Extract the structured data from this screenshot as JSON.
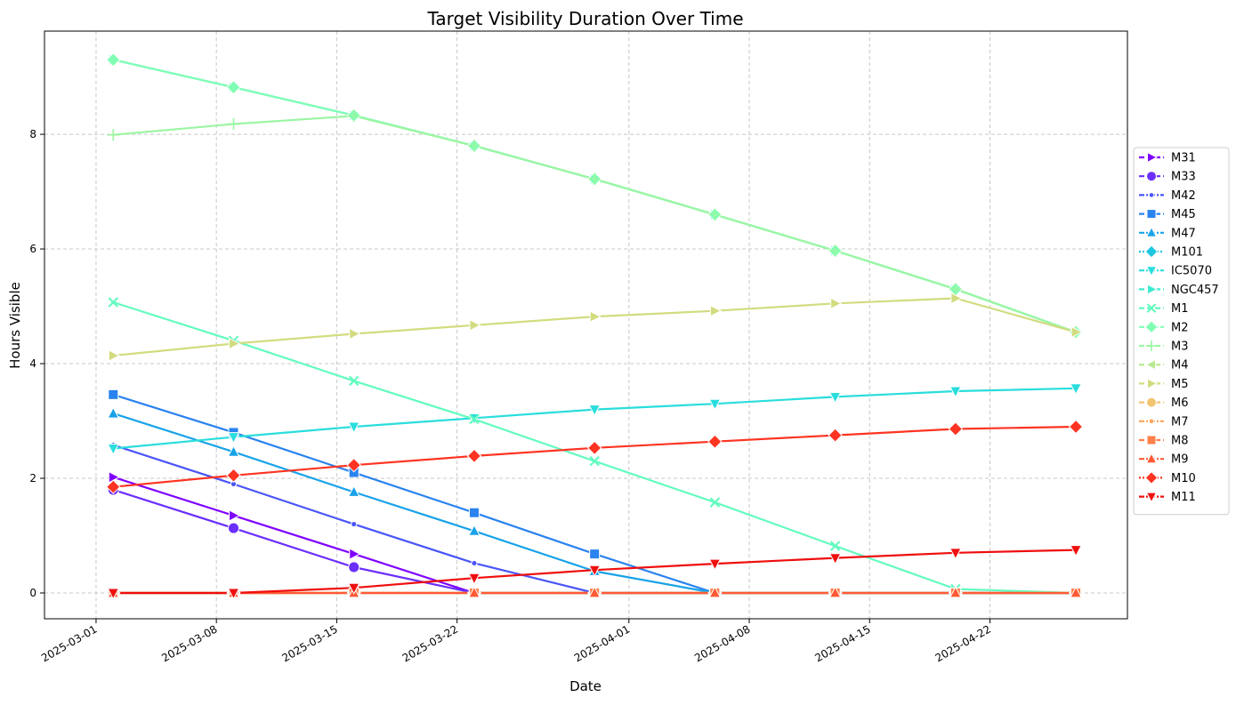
{
  "chart_data": {
    "type": "line",
    "title": "Target Visibility Duration Over Time",
    "xlabel": "Date",
    "ylabel": "Hours Visible",
    "x_ticks": [
      "2025-03-01",
      "2025-03-08",
      "2025-03-15",
      "2025-03-22",
      "2025-04-01",
      "2025-04-08",
      "2025-04-15",
      "2025-04-22"
    ],
    "y_ticks": [
      "0",
      "2",
      "4",
      "6",
      "8"
    ],
    "xlim": [
      "2025-02-26",
      "2025-04-30"
    ],
    "ylim": [
      -0.45,
      9.8
    ],
    "grid": true,
    "legend_position": "right",
    "x": [
      "2025-03-02",
      "2025-03-09",
      "2025-03-16",
      "2025-03-23",
      "2025-03-30",
      "2025-04-06",
      "2025-04-13",
      "2025-04-20",
      "2025-04-27"
    ],
    "series": [
      {
        "name": "M31",
        "color": "#7f00ff",
        "marker": "triangle-right",
        "dash": "dashed",
        "values": [
          2.02,
          1.35,
          0.68,
          0.0,
          0.0,
          0.0,
          0.0,
          0.0,
          0.0
        ]
      },
      {
        "name": "M33",
        "color": "#6a2ffc",
        "marker": "circle",
        "dash": "dashed",
        "values": [
          1.8,
          1.13,
          0.45,
          0.0,
          0.0,
          0.0,
          0.0,
          0.0,
          0.0
        ]
      },
      {
        "name": "M42",
        "color": "#4a55f7",
        "marker": "dot",
        "dash": "dashdot",
        "values": [
          2.58,
          1.9,
          1.2,
          0.52,
          0.0,
          0.0,
          0.0,
          0.0,
          0.0
        ]
      },
      {
        "name": "M45",
        "color": "#2a83ee",
        "marker": "square",
        "dash": "dashed",
        "values": [
          3.46,
          2.8,
          2.1,
          1.4,
          0.68,
          0.0,
          0.0,
          0.0,
          0.0
        ]
      },
      {
        "name": "M47",
        "color": "#18a2e8",
        "marker": "triangle-up",
        "dash": "dashdot",
        "values": [
          3.13,
          2.46,
          1.76,
          1.08,
          0.38,
          0.0,
          0.0,
          0.0,
          0.0
        ]
      },
      {
        "name": "M101",
        "color": "#1ec7e0",
        "marker": "diamond",
        "dash": "dotted",
        "values": [
          0.0,
          0.0,
          0.0,
          0.0,
          0.0,
          0.0,
          0.0,
          0.0,
          0.0
        ]
      },
      {
        "name": "IC5070",
        "color": "#2adddd",
        "marker": "triangle-down",
        "dash": "dashdot",
        "values": [
          2.52,
          2.72,
          2.9,
          3.05,
          3.2,
          3.3,
          3.42,
          3.52,
          3.57
        ]
      },
      {
        "name": "NGC457",
        "color": "#3eeace",
        "marker": "triangle-right",
        "dash": "dashed",
        "values": [
          9.3,
          8.82,
          8.33,
          7.8,
          7.22,
          6.6,
          5.97,
          5.3,
          4.55
        ]
      },
      {
        "name": "M1",
        "color": "#63fbbf",
        "marker": "x",
        "dash": "dashed",
        "values": [
          5.07,
          4.4,
          3.7,
          3.03,
          2.3,
          1.58,
          0.82,
          0.07,
          0.0
        ]
      },
      {
        "name": "M2",
        "color": "#80ffb4",
        "marker": "diamond",
        "dash": "dashdot",
        "values": [
          9.3,
          8.82,
          8.33,
          7.8,
          7.22,
          6.6,
          5.97,
          5.3,
          4.55
        ]
      },
      {
        "name": "M3",
        "color": "#9bf6a2",
        "marker": "plus",
        "dash": "dashed",
        "values": [
          7.99,
          8.18,
          8.32,
          7.8,
          7.22,
          6.6,
          5.97,
          5.3,
          4.55
        ]
      },
      {
        "name": "M4",
        "color": "#b6e98f",
        "marker": "triangle-left",
        "dash": "dashed",
        "values": [
          0.0,
          0.0,
          0.0,
          0.0,
          0.0,
          0.0,
          0.0,
          0.0,
          0.0
        ]
      },
      {
        "name": "M5",
        "color": "#d2dc7f",
        "marker": "triangle-right",
        "dash": "dashed",
        "values": [
          4.14,
          4.35,
          4.52,
          4.67,
          4.82,
          4.92,
          5.05,
          5.14,
          4.55
        ]
      },
      {
        "name": "M6",
        "color": "#f1c470",
        "marker": "circle",
        "dash": "dashed",
        "values": [
          0.0,
          0.0,
          0.0,
          0.0,
          0.0,
          0.0,
          0.0,
          0.0,
          0.0
        ]
      },
      {
        "name": "M7",
        "color": "#ffa256",
        "marker": "dot",
        "dash": "dashdot",
        "values": [
          0.0,
          0.0,
          0.0,
          0.0,
          0.0,
          0.0,
          0.0,
          0.0,
          0.0
        ]
      },
      {
        "name": "M8",
        "color": "#ff7f48",
        "marker": "square",
        "dash": "dashed",
        "values": [
          0.0,
          0.0,
          0.0,
          0.0,
          0.0,
          0.0,
          0.0,
          0.0,
          0.0
        ]
      },
      {
        "name": "M9",
        "color": "#ff5a35",
        "marker": "triangle-up",
        "dash": "dashdot",
        "values": [
          0.0,
          0.0,
          0.0,
          0.0,
          0.0,
          0.0,
          0.0,
          0.0,
          0.0
        ]
      },
      {
        "name": "M10",
        "color": "#fe3422",
        "marker": "diamond",
        "dash": "dotted",
        "values": [
          1.85,
          2.05,
          2.23,
          2.39,
          2.53,
          2.64,
          2.75,
          2.86,
          2.9
        ]
      },
      {
        "name": "M11",
        "color": "#ef0e0e",
        "marker": "triangle-down",
        "dash": "dashdot",
        "values": [
          0.0,
          0.0,
          0.09,
          0.26,
          0.4,
          0.51,
          0.61,
          0.7,
          0.75
        ]
      }
    ]
  }
}
